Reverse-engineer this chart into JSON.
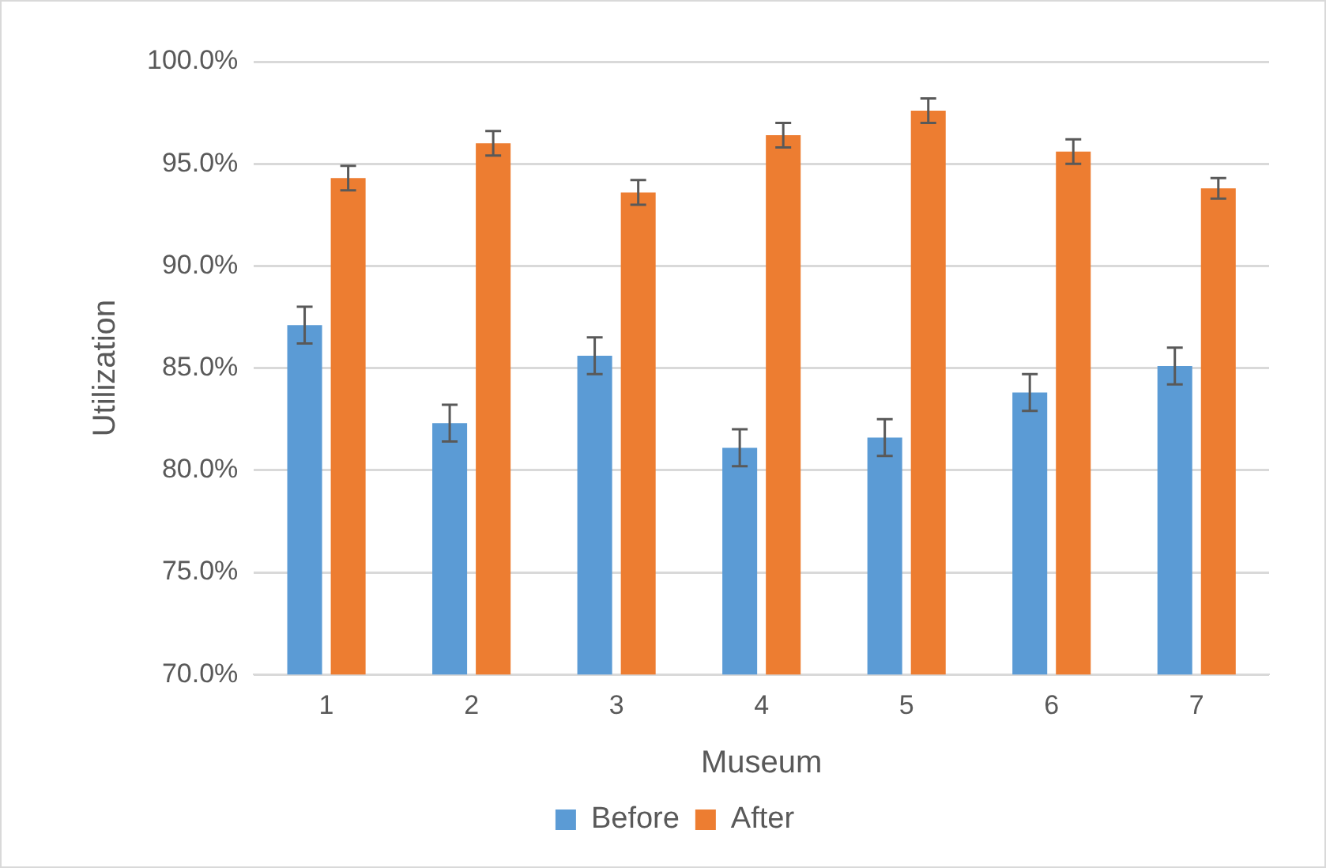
{
  "chart_data": {
    "type": "bar",
    "xlabel": "Museum",
    "ylabel": "Utilization",
    "categories": [
      "1",
      "2",
      "3",
      "4",
      "5",
      "6",
      "7"
    ],
    "series": [
      {
        "name": "Before",
        "color": "#5b9bd5",
        "values": [
          87.1,
          82.3,
          85.6,
          81.1,
          81.6,
          83.8,
          85.1
        ],
        "errors": [
          0.9,
          0.9,
          0.9,
          0.9,
          0.9,
          0.9,
          0.9
        ]
      },
      {
        "name": "After",
        "color": "#ed7d31",
        "values": [
          94.3,
          96.0,
          93.6,
          96.4,
          97.6,
          95.6,
          93.8
        ],
        "errors": [
          0.6,
          0.6,
          0.6,
          0.6,
          0.6,
          0.6,
          0.5
        ]
      }
    ],
    "ylim": [
      70,
      100
    ],
    "yticks": [
      {
        "value": 70,
        "label": "70.0%"
      },
      {
        "value": 75,
        "label": "75.0%"
      },
      {
        "value": 80,
        "label": "80.0%"
      },
      {
        "value": 85,
        "label": "85.0%"
      },
      {
        "value": 90,
        "label": "90.0%"
      },
      {
        "value": 95,
        "label": "95.0%"
      },
      {
        "value": 100,
        "label": "100.0%"
      }
    ],
    "grid": "y",
    "legend": "bottom"
  }
}
